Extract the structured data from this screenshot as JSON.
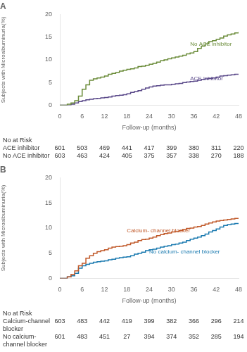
{
  "chart_data": [
    {
      "type": "line",
      "title": "A",
      "x_label": "Follow-up (months)",
      "y_label": "Subjects with Microalbuminuria(%)",
      "xlim": [
        0,
        48
      ],
      "xticks": [
        0,
        6,
        12,
        18,
        24,
        30,
        36,
        42,
        48
      ],
      "ylim": [
        0,
        20
      ],
      "yticks": [
        0,
        5,
        10,
        15,
        20
      ],
      "grid": false,
      "series": [
        {
          "name": "No ACE inhibitor",
          "color": "#6b8c3a",
          "line_style": "steps",
          "x": [
            0,
            2,
            3,
            4,
            5,
            6,
            7,
            8,
            9,
            10,
            11,
            12,
            13,
            14,
            15,
            16,
            17,
            18,
            19,
            20,
            21,
            22,
            23,
            24,
            25,
            26,
            27,
            28,
            29,
            30,
            31,
            32,
            33,
            34,
            35,
            36,
            37,
            38,
            39,
            40,
            41,
            42,
            43,
            44,
            45,
            46,
            47,
            48
          ],
          "values": [
            0,
            0.2,
            0.5,
            1.0,
            2.0,
            3.5,
            4.5,
            5.5,
            5.8,
            6.0,
            6.2,
            6.4,
            6.8,
            7.0,
            7.2,
            7.5,
            7.7,
            7.9,
            8.0,
            8.2,
            8.5,
            8.6,
            8.8,
            9.0,
            9.2,
            9.5,
            9.8,
            10.0,
            10.2,
            10.4,
            10.6,
            10.8,
            11.0,
            11.3,
            11.5,
            11.8,
            12.5,
            13.0,
            13.5,
            14.0,
            14.2,
            14.5,
            14.8,
            15.2,
            15.5,
            15.7,
            15.9,
            16.1
          ]
        },
        {
          "name": "ACE inhibitor",
          "color": "#5b4a8a",
          "line_style": "steps",
          "x": [
            0,
            3,
            4,
            5,
            6,
            7,
            8,
            9,
            10,
            11,
            12,
            13,
            14,
            15,
            16,
            17,
            18,
            19,
            20,
            21,
            22,
            23,
            24,
            25,
            26,
            27,
            28,
            29,
            30,
            31,
            32,
            33,
            34,
            35,
            36,
            37,
            38,
            39,
            40,
            41,
            42,
            43,
            44,
            45,
            46,
            47,
            48
          ],
          "values": [
            0,
            0.2,
            0.5,
            0.8,
            1.0,
            1.2,
            1.3,
            1.4,
            1.5,
            1.6,
            1.7,
            1.8,
            2.0,
            2.1,
            2.2,
            2.3,
            2.5,
            2.8,
            3.0,
            3.2,
            3.5,
            3.8,
            4.0,
            4.2,
            4.3,
            4.4,
            4.5,
            4.5,
            4.6,
            4.7,
            4.8,
            5.0,
            5.1,
            5.2,
            5.3,
            5.5,
            5.7,
            5.8,
            5.9,
            6.0,
            6.2,
            6.4,
            6.5,
            6.6,
            6.7,
            6.8,
            6.9
          ]
        }
      ],
      "annotations": [
        {
          "text": "No ACE inhibitor",
          "x": 35,
          "y": 13.5,
          "color": "#6b8c3a"
        },
        {
          "text": "ACE inhibitor",
          "x": 35,
          "y": 5.8,
          "color": "#5b4a8a"
        }
      ],
      "at_risk": {
        "header": "No at Risk",
        "rows": [
          {
            "label": "ACE inhibitor",
            "values": [
              601,
              503,
              469,
              441,
              417,
              399,
              380,
              311,
              220
            ]
          },
          {
            "label": "No ACE inhibitor",
            "values": [
              603,
              463,
              424,
              405,
              375,
              357,
              338,
              270,
              188
            ]
          }
        ]
      }
    },
    {
      "type": "line",
      "title": "B",
      "x_label": "Follow-up (months)",
      "y_label": "Subjects with Microalbuminuria(%)",
      "xlim": [
        0,
        48
      ],
      "xticks": [
        0,
        6,
        12,
        18,
        24,
        30,
        36,
        42,
        48
      ],
      "ylim": [
        0,
        20
      ],
      "yticks": [
        0,
        5,
        10,
        15,
        20
      ],
      "grid": false,
      "series": [
        {
          "name": "Calcium- channel blocker",
          "color": "#c05828",
          "line_style": "steps",
          "x": [
            0,
            2,
            3,
            4,
            5,
            6,
            7,
            8,
            9,
            10,
            11,
            12,
            13,
            14,
            15,
            16,
            17,
            18,
            19,
            20,
            21,
            22,
            23,
            24,
            25,
            26,
            27,
            28,
            29,
            30,
            31,
            32,
            33,
            34,
            35,
            36,
            37,
            38,
            39,
            40,
            41,
            42,
            43,
            44,
            45,
            46,
            47,
            48
          ],
          "values": [
            0,
            0.3,
            0.8,
            1.5,
            2.5,
            3.0,
            4.0,
            4.5,
            5.0,
            5.3,
            5.5,
            5.7,
            6.0,
            6.2,
            6.3,
            6.4,
            6.5,
            6.7,
            7.0,
            7.2,
            7.5,
            7.7,
            7.8,
            8.0,
            8.2,
            8.5,
            8.7,
            8.9,
            9.0,
            9.2,
            9.3,
            9.5,
            9.7,
            9.9,
            10.0,
            10.2,
            10.3,
            10.5,
            10.8,
            11.0,
            11.2,
            11.4,
            11.5,
            11.6,
            11.7,
            11.8,
            11.9,
            12.0
          ]
        },
        {
          "name": "No calcium- channel blocker",
          "color": "#1a7ab0",
          "line_style": "steps",
          "x": [
            0,
            2,
            3,
            4,
            5,
            6,
            7,
            8,
            9,
            10,
            11,
            12,
            13,
            14,
            15,
            16,
            17,
            18,
            19,
            20,
            21,
            22,
            23,
            24,
            25,
            26,
            27,
            28,
            29,
            30,
            31,
            32,
            33,
            34,
            35,
            36,
            37,
            38,
            39,
            40,
            41,
            42,
            43,
            44,
            45,
            46,
            47,
            48
          ],
          "values": [
            0,
            0.3,
            0.5,
            1.0,
            2.0,
            2.5,
            2.8,
            3.0,
            3.2,
            3.3,
            3.4,
            3.5,
            3.7,
            3.8,
            4.0,
            4.1,
            4.2,
            4.3,
            4.5,
            4.8,
            5.0,
            5.2,
            5.5,
            5.7,
            5.8,
            6.0,
            6.2,
            6.4,
            6.5,
            6.7,
            6.8,
            7.0,
            7.2,
            7.5,
            7.8,
            8.0,
            8.2,
            8.5,
            8.8,
            9.2,
            9.5,
            9.8,
            10.2,
            10.5,
            10.7,
            10.8,
            10.9,
            11.0
          ]
        }
      ],
      "annotations": [
        {
          "text": "Calcium- channel blocker",
          "x": 18,
          "y": 9.5,
          "color": "#c05828"
        },
        {
          "text": "No calcium- channel blocker",
          "x": 24,
          "y": 5.2,
          "color": "#1a7ab0"
        }
      ],
      "at_risk": {
        "header": "No at Risk",
        "rows": [
          {
            "label": "Calcium-channel\nblocker",
            "values": [
              603,
              483,
              442,
              419,
              399,
              382,
              366,
              296,
              214
            ]
          },
          {
            "label": "No calcium-\nchannel blocker",
            "values": [
              601,
              483,
              451,
              27,
              394,
              374,
              352,
              285,
              194
            ]
          }
        ]
      }
    }
  ]
}
